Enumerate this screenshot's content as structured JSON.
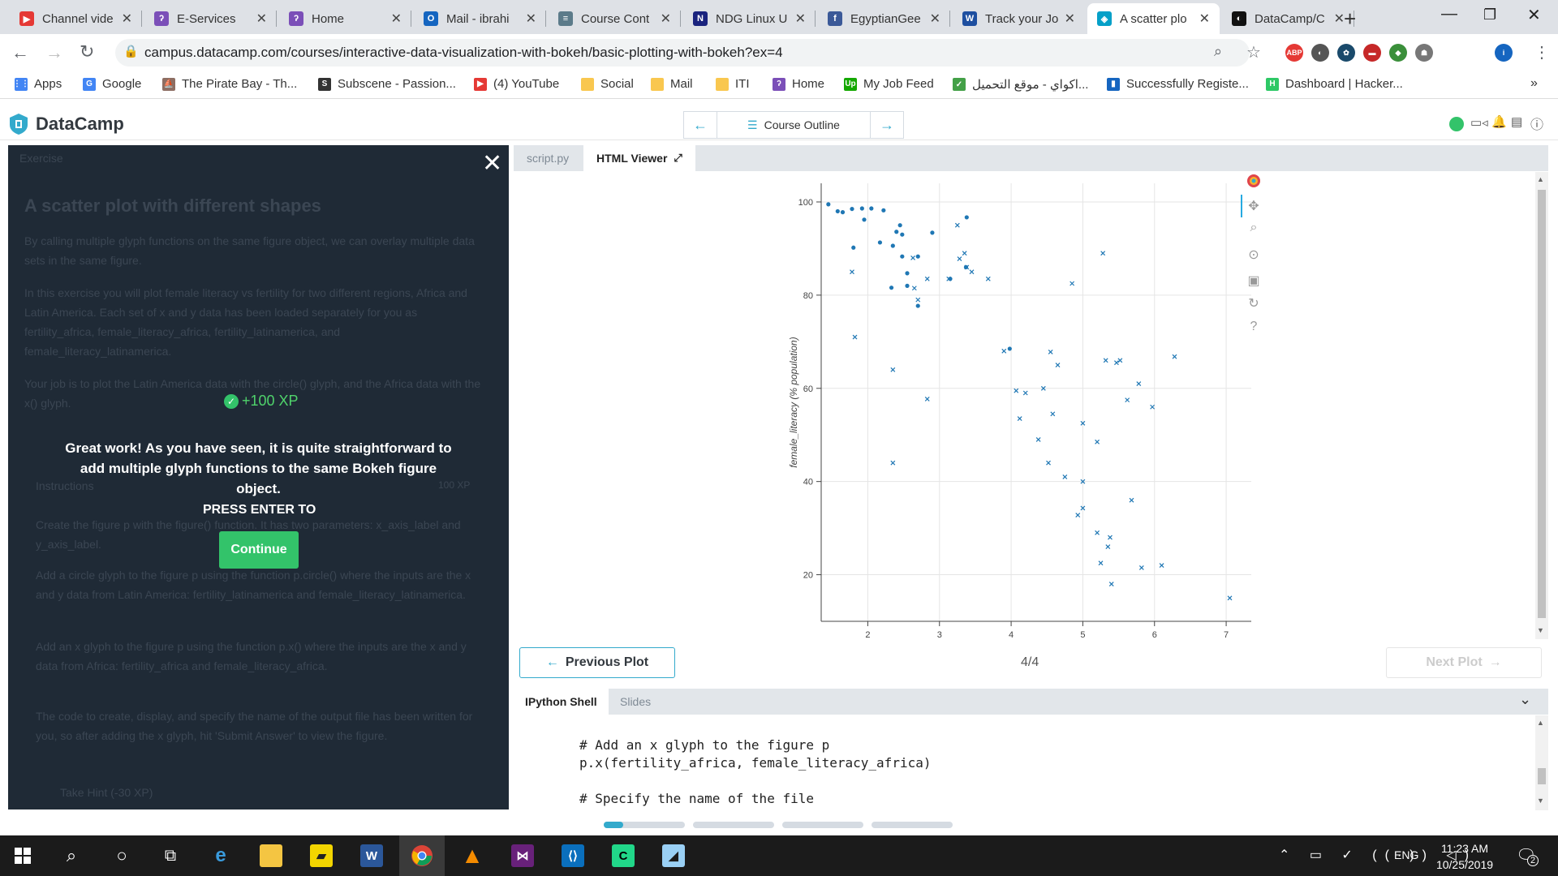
{
  "browser": {
    "tabs": [
      {
        "title": "Channel vide",
        "fav_color": "#e53935",
        "fav_text": "▶"
      },
      {
        "title": "E-Services",
        "fav_color": "#7b4fb8",
        "fav_text": "ʔ"
      },
      {
        "title": "Home",
        "fav_color": "#7b4fb8",
        "fav_text": "ʔ"
      },
      {
        "title": "Mail - ibrahi",
        "fav_color": "#1565c0",
        "fav_text": "O"
      },
      {
        "title": "Course Cont",
        "fav_color": "#5c7b8a",
        "fav_text": "≡"
      },
      {
        "title": "NDG Linux U",
        "fav_color": "#1a237e",
        "fav_text": "N"
      },
      {
        "title": "EgyptianGee",
        "fav_color": "#3b5998",
        "fav_text": "f"
      },
      {
        "title": "Track your Jo",
        "fav_color": "#1e4fa0",
        "fav_text": "W"
      },
      {
        "title": "A scatter plo",
        "fav_color": "#05a0c8",
        "fav_text": "◈"
      },
      {
        "title": "DataCamp/C",
        "fav_color": "#111",
        "fav_text": "◐"
      }
    ],
    "url": "campus.datacamp.com/courses/interactive-data-visualization-with-bokeh/basic-plotting-with-bokeh?ex=4",
    "extensions": [
      {
        "label": "ABP",
        "color": "#e53935"
      },
      {
        "label": "◐",
        "color": "#555"
      },
      {
        "label": "✿",
        "color": "#1a4a6b"
      },
      {
        "label": "▬",
        "color": "#c62828"
      },
      {
        "label": "◆",
        "color": "#3a8f3a"
      },
      {
        "label": "☗",
        "color": "#777"
      },
      {
        "label": "i",
        "color": "#1565c0"
      }
    ],
    "bookmarks": [
      {
        "label": "Apps",
        "color": "#4285f4",
        "icon": "⋮⋮"
      },
      {
        "label": "Google",
        "color": "#4285f4",
        "icon": "G"
      },
      {
        "label": "The Pirate Bay - Th...",
        "color": "#8d6e63",
        "icon": "⛵"
      },
      {
        "label": "Subscene - Passion...",
        "color": "#333",
        "icon": "S"
      },
      {
        "label": "(4) YouTube",
        "color": "#e53935",
        "icon": "▶"
      },
      {
        "label": "Social",
        "color": "#f9c74f",
        "icon": ""
      },
      {
        "label": "Mail",
        "color": "#f9c74f",
        "icon": ""
      },
      {
        "label": "ITI",
        "color": "#f9c74f",
        "icon": ""
      },
      {
        "label": "Home",
        "color": "#7b4fb8",
        "icon": "ʔ"
      },
      {
        "label": "My Job Feed",
        "color": "#14a800",
        "icon": "Up"
      },
      {
        "label": "اكواي - موقع التحميل...",
        "color": "#43a047",
        "icon": "✓"
      },
      {
        "label": "Successfully Registe...",
        "color": "#1565c0",
        "icon": "▮"
      },
      {
        "label": "Dashboard | Hacker...",
        "color": "#2ec866",
        "icon": "H"
      }
    ],
    "bookmarks_more": "»"
  },
  "header": {
    "logo": "DataCamp",
    "course_outline": "Course Outline",
    "brand_color": "#3ac"
  },
  "left": {
    "ghost_exercise": "Exercise",
    "ghost_title": "A scatter plot with different shapes",
    "ghost_p1": "By calling multiple glyph functions on the same figure object, we can overlay multiple data sets in the same figure.",
    "ghost_p2": "In this exercise you will plot female literacy vs fertility for two different regions, Africa and Latin America. Each set of x and y data has been loaded separately for you as fertility_africa, female_literacy_africa, fertility_latinamerica, and female_literacy_latinamerica.",
    "ghost_p3": "Your job is to plot the Latin America data with the circle() glyph, and the Africa data with the x() glyph.",
    "ghost_instructions": "Instructions",
    "ghost_xp": "100 XP",
    "ghost_i1": "Create the figure p with the figure() function. It has two parameters: x_axis_label and y_axis_label.",
    "ghost_i2": "Add a circle glyph to the figure p using the function p.circle() where the inputs are the x and y data from Latin America: fertility_latinamerica and female_literacy_latinamerica.",
    "ghost_i3": "Add an x glyph to the figure p using the function p.x() where the inputs are the x and y data from Africa: fertility_africa and female_literacy_africa.",
    "ghost_i4": "The code to create, display, and specify the name of the output file has been written for you, so after adding the x glyph, hit 'Submit Answer' to view the figure.",
    "ghost_hint": "Take Hint (-30 XP)",
    "xp": "+100 XP",
    "message": "Great work! As you have seen, it is quite straightforward to add multiple glyph functions to the same Bokeh figure object.",
    "press_enter": "PRESS ENTER TO",
    "continue": "Continue"
  },
  "editor": {
    "tabs": [
      "script.py",
      "HTML Viewer"
    ]
  },
  "plot_nav": {
    "prev": "Previous Plot",
    "page": "4/4",
    "next": "Next Plot"
  },
  "shell": {
    "tabs": [
      "IPython Shell",
      "Slides"
    ],
    "code_line1": "# Add an x glyph to the figure p",
    "code_line2": "p.x(fertility_africa, female_literacy_africa)",
    "code_line3": "# Specify the name of the file"
  },
  "chart_data": {
    "type": "scatter",
    "xlabel": "",
    "ylabel": "female_literacy (% population)",
    "xlim": [
      1.35,
      7.35
    ],
    "ylim": [
      10,
      104
    ],
    "x_ticks": [
      2,
      3,
      4,
      5,
      6,
      7
    ],
    "y_ticks": [
      20,
      40,
      60,
      80,
      100
    ],
    "grid": true,
    "color": "#1f77b4",
    "series": [
      {
        "marker": "circle",
        "points": [
          [
            1.45,
            99.5
          ],
          [
            1.58,
            98.0
          ],
          [
            1.65,
            97.8
          ],
          [
            1.78,
            98.5
          ],
          [
            1.92,
            98.6
          ],
          [
            2.05,
            98.6
          ],
          [
            2.22,
            98.2
          ],
          [
            1.8,
            90.2
          ],
          [
            1.95,
            96.2
          ],
          [
            2.17,
            91.3
          ],
          [
            2.35,
            90.6
          ],
          [
            2.4,
            93.6
          ],
          [
            2.48,
            93.0
          ],
          [
            2.45,
            95.0
          ],
          [
            2.7,
            88.3
          ],
          [
            2.55,
            84.7
          ],
          [
            2.48,
            88.3
          ],
          [
            2.55,
            82.0
          ],
          [
            2.33,
            81.6
          ],
          [
            2.9,
            93.4
          ],
          [
            3.15,
            83.5
          ],
          [
            3.37,
            86.0
          ],
          [
            3.38,
            96.7
          ],
          [
            2.7,
            77.7
          ],
          [
            3.98,
            68.5
          ]
        ]
      },
      {
        "marker": "x",
        "points": [
          [
            1.78,
            85.0
          ],
          [
            1.82,
            71.0
          ],
          [
            2.35,
            64.0
          ],
          [
            2.35,
            44.0
          ],
          [
            2.63,
            88.0
          ],
          [
            2.65,
            81.5
          ],
          [
            2.7,
            79.0
          ],
          [
            2.83,
            83.5
          ],
          [
            2.83,
            57.7
          ],
          [
            3.13,
            83.5
          ],
          [
            3.25,
            95.0
          ],
          [
            3.28,
            87.8
          ],
          [
            3.35,
            89.0
          ],
          [
            3.38,
            86.0
          ],
          [
            3.45,
            85.0
          ],
          [
            3.68,
            83.5
          ],
          [
            3.9,
            68.0
          ],
          [
            4.07,
            59.5
          ],
          [
            4.2,
            59.0
          ],
          [
            4.12,
            53.5
          ],
          [
            4.38,
            49.0
          ],
          [
            4.45,
            60.0
          ],
          [
            4.52,
            44.0
          ],
          [
            4.55,
            67.8
          ],
          [
            4.58,
            54.5
          ],
          [
            4.65,
            65.0
          ],
          [
            4.75,
            41.0
          ],
          [
            4.85,
            82.5
          ],
          [
            4.93,
            32.8
          ],
          [
            5.0,
            34.3
          ],
          [
            5.0,
            52.5
          ],
          [
            5.0,
            40.0
          ],
          [
            5.2,
            48.5
          ],
          [
            5.2,
            29.0
          ],
          [
            5.25,
            22.5
          ],
          [
            5.28,
            89.0
          ],
          [
            5.32,
            66.0
          ],
          [
            5.38,
            28.0
          ],
          [
            5.4,
            18.0
          ],
          [
            5.47,
            65.5
          ],
          [
            5.52,
            66.0
          ],
          [
            5.62,
            57.5
          ],
          [
            5.68,
            36.0
          ],
          [
            5.78,
            61.0
          ],
          [
            5.82,
            21.5
          ],
          [
            5.97,
            56.0
          ],
          [
            6.1,
            22.0
          ],
          [
            6.28,
            66.8
          ],
          [
            7.05,
            15.0
          ],
          [
            5.35,
            26.0
          ]
        ]
      }
    ]
  },
  "taskbar": {
    "time": "11:23 AM",
    "date": "10/25/2019",
    "lang": "ENG",
    "notif_count": "2"
  }
}
